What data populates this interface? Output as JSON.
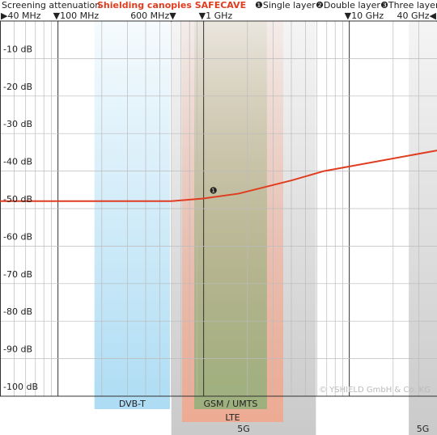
{
  "chart_data": {
    "type": "line",
    "title": "Screening attenuation",
    "subtitle": "Shielding canopies SAFECAVE",
    "legend_items": [
      "❶Single layer",
      "❷Double layer",
      "❸Three layer"
    ],
    "annotation": "❶",
    "copyright": "© YSHIELD GmbH & Co. KG",
    "log_x": true,
    "xlim": [
      40,
      40000
    ],
    "ylim": [
      -100,
      0
    ],
    "xticks": [
      {
        "value": 40,
        "label": "▶40 MHz"
      },
      {
        "value": 100,
        "label": "▼100 MHz"
      },
      {
        "value": 600,
        "label": "600 MHz▼"
      },
      {
        "value": 1000,
        "label": "▼1 GHz"
      },
      {
        "value": 10000,
        "label": "▼10 GHz"
      },
      {
        "value": 40000,
        "label": "40 GHz◀"
      }
    ],
    "xgrid": [
      50,
      60,
      70,
      80,
      90,
      100,
      200,
      300,
      400,
      500,
      600,
      700,
      800,
      900,
      1000,
      2000,
      3000,
      4000,
      5000,
      6000,
      7000,
      8000,
      9000,
      10000,
      20000,
      30000
    ],
    "yticks": [
      {
        "value": -10,
        "label": "-10 dB"
      },
      {
        "value": -20,
        "label": "-20 dB"
      },
      {
        "value": -30,
        "label": "-30 dB"
      },
      {
        "value": -40,
        "label": "-40 dB"
      },
      {
        "value": -50,
        "label": "-50 dB"
      },
      {
        "value": -60,
        "label": "-60 dB"
      },
      {
        "value": -70,
        "label": "-70 dB"
      },
      {
        "value": -80,
        "label": "-80 dB"
      },
      {
        "value": -90,
        "label": "-90 dB"
      },
      {
        "value": -100,
        "label": "-100 dB"
      }
    ],
    "bands": [
      {
        "name": "5G",
        "from": 600,
        "to": 5900,
        "color": "#b8b8b8"
      },
      {
        "name": "5G",
        "from": 25600,
        "to": 40000,
        "color": "#b8b8b8"
      },
      {
        "name": "DVB-T",
        "from": 178,
        "to": 587,
        "color": "#9fd6f2"
      },
      {
        "name": "LTE",
        "from": 711,
        "to": 3520,
        "color": "#f4a58a"
      },
      {
        "name": "GSM / UMTS",
        "from": 862,
        "to": 2720,
        "color": "#8fb07a"
      }
    ],
    "series": [
      {
        "name": "Shielding canopies SAFECAVE",
        "color": "#e03c20",
        "x": [
          40,
          600,
          1000,
          1740,
          4000,
          6700,
          40000
        ],
        "values": [
          -48,
          -48,
          -47.3,
          -46,
          -42.5,
          -40,
          -34.5
        ]
      }
    ]
  }
}
